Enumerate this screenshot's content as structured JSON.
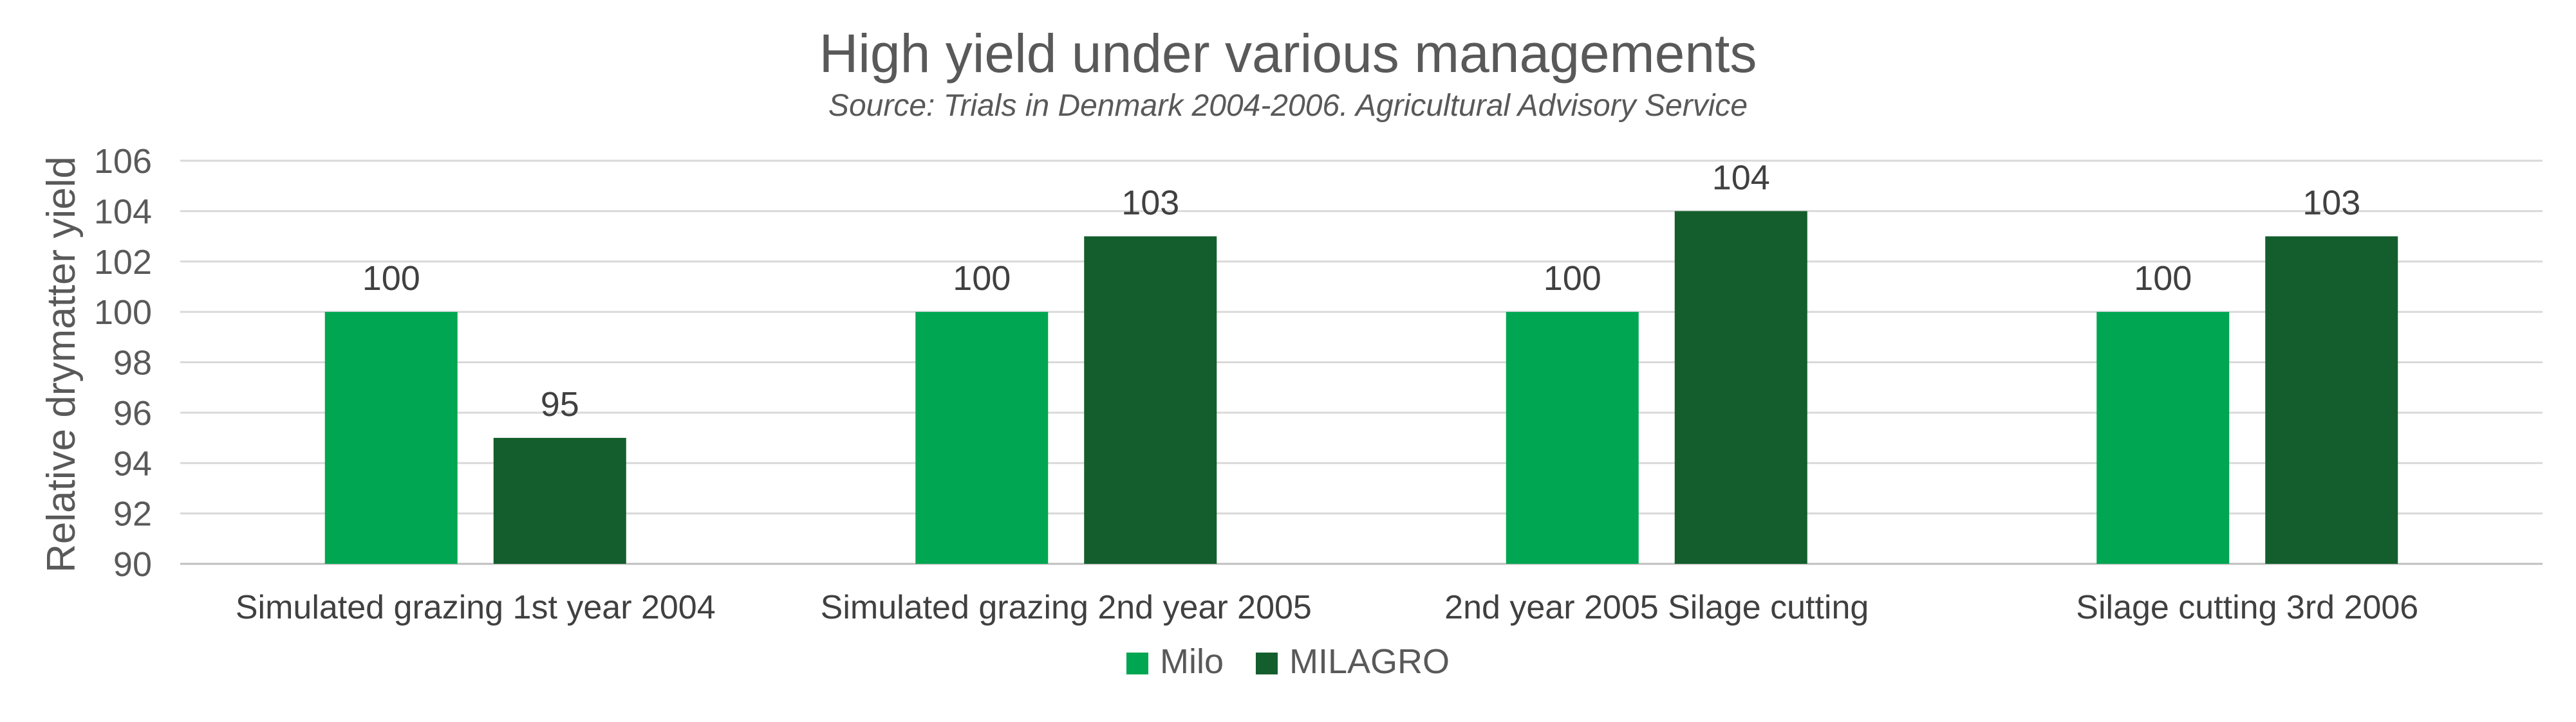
{
  "chart_data": {
    "type": "bar",
    "title": "High yield under various managements",
    "subtitle": "Source: Trials in Denmark 2004-2006. Agricultural Advisory Service",
    "xlabel": "",
    "ylabel": "Relative drymatter yield",
    "ylim": [
      90,
      106
    ],
    "yticks": [
      90,
      92,
      94,
      96,
      98,
      100,
      102,
      104,
      106
    ],
    "grid": true,
    "legend_position": "bottom",
    "categories": [
      "Simulated grazing 1st year 2004",
      "Simulated grazing 2nd year 2005",
      "2nd year 2005 Silage cutting",
      "Silage cutting 3rd 2006"
    ],
    "series": [
      {
        "name": "Milo",
        "color": "#00A651",
        "values": [
          100,
          100,
          100,
          100
        ]
      },
      {
        "name": "MILAGRO",
        "color": "#135E2C",
        "values": [
          95,
          103,
          104,
          103
        ]
      }
    ]
  }
}
